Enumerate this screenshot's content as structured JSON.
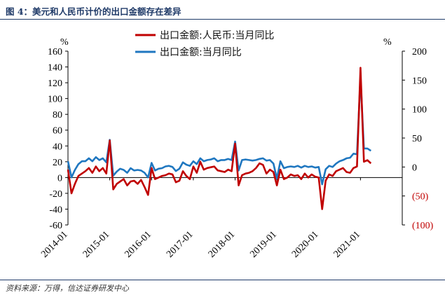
{
  "header": {
    "title": "图 4：美元和人民币计价的出口金额存在差异"
  },
  "footer": {
    "source": "资料来源：万得，信达证券研发中心"
  },
  "chart_data": {
    "type": "line",
    "title": "",
    "left_axis": {
      "unit_label": "%",
      "range": [
        -60,
        160
      ],
      "ticks": [
        "-60",
        "-40",
        "-20",
        "0",
        "20",
        "40",
        "60",
        "80",
        "100",
        "120",
        "140",
        "160"
      ]
    },
    "right_axis": {
      "unit_label": "%",
      "range": [
        -100,
        200
      ],
      "ticks": [
        {
          "value": 200,
          "label": "200"
        },
        {
          "value": 150,
          "label": "150"
        },
        {
          "value": 100,
          "label": "100"
        },
        {
          "value": 50,
          "label": "50"
        },
        {
          "value": 0,
          "label": "0"
        },
        {
          "value": -50,
          "label": "(50)"
        },
        {
          "value": -100,
          "label": "(100)"
        }
      ],
      "colors": {
        "positive": "#000000",
        "negative": "#c00000"
      }
    },
    "x_axis": {
      "start": "2014-01",
      "ticks": [
        "2014-01",
        "2015-01",
        "2016-01",
        "2017-01",
        "2018-01",
        "2019-01",
        "2020-01",
        "2021-01"
      ]
    },
    "legend": {
      "placement": "top"
    },
    "series": [
      {
        "name": "出口金额:人民币:当月同比",
        "color": "#c00000",
        "axis": "left",
        "values": [
          10,
          -20,
          -8,
          2,
          5,
          8,
          12,
          6,
          14,
          8,
          12,
          5,
          47,
          -15,
          -8,
          -5,
          -2,
          -10,
          -5,
          -4,
          -8,
          -3,
          -12,
          -22,
          12,
          -2,
          0,
          2,
          3,
          5,
          4,
          -6,
          -4,
          8,
          2,
          -2,
          14,
          6,
          20,
          10,
          12,
          13,
          14,
          9,
          8,
          7,
          10,
          8,
          43,
          -10,
          3,
          5,
          6,
          8,
          12,
          18,
          16,
          5,
          10,
          7,
          -10,
          10,
          -2,
          0,
          4,
          2,
          3,
          -2,
          5,
          0,
          4,
          1,
          0,
          -40,
          -4,
          4,
          2,
          8,
          10,
          12,
          7,
          6,
          12,
          14,
          139,
          20,
          22,
          18
        ]
      },
      {
        "name": "出口金额:当月同比",
        "color": "#1f77c0",
        "axis": "right",
        "values": [
          10,
          -18,
          -5,
          5,
          10,
          10,
          15,
          10,
          17,
          12,
          15,
          8,
          47,
          -15,
          -8,
          -3,
          -5,
          -10,
          -2,
          -6,
          -5,
          -6,
          -10,
          -18,
          7,
          -6,
          -3,
          -2,
          1,
          2,
          0,
          -7,
          -3,
          8,
          4,
          2,
          10,
          5,
          15,
          10,
          12,
          13,
          15,
          10,
          12,
          12,
          14,
          12,
          44,
          -6,
          12,
          13,
          12,
          11,
          12,
          14,
          15,
          11,
          12,
          6,
          -20,
          10,
          -2,
          0,
          1,
          0,
          2,
          -1,
          2,
          0,
          1,
          -1,
          0,
          -30,
          -4,
          2,
          0,
          6,
          10,
          12,
          15,
          16,
          23,
          22,
          155,
          32,
          32,
          28
        ]
      }
    ]
  }
}
